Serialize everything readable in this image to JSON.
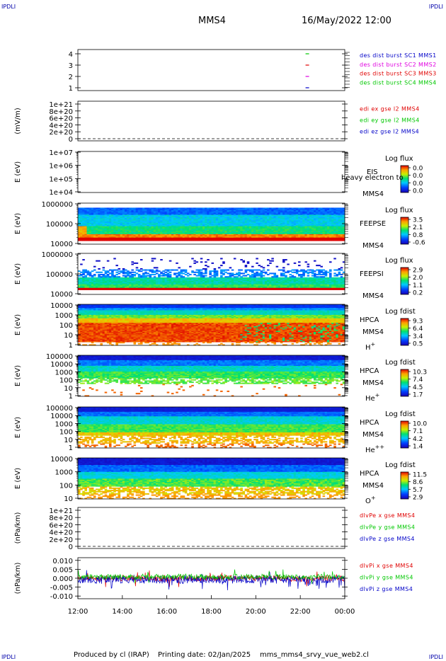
{
  "header": {
    "corner_tl": "IPDLI",
    "corner_tr": "IPDLI",
    "corner_bl": "IPDLI",
    "corner_br": "IPDLI",
    "spacecraft": "MMS4",
    "datetime": "16/May/2022 12:00"
  },
  "footer": {
    "producer": "Produced by cl (IRAP)",
    "printing": "Printing date: 02/Jan/2025",
    "file": "mms_mms4_srvy_vue_web2.cl"
  },
  "colors": {
    "mms1": "#0000c8",
    "mms2": "#e000e0",
    "mms3": "#e00000",
    "mms4": "#00c800",
    "red": "#e00000",
    "green": "#00c800",
    "blue": "#0000c8"
  },
  "chart_data": {
    "type": "heatmap",
    "time_axis": {
      "ticks": [
        "12:00",
        "14:00",
        "16:00",
        "18:00",
        "20:00",
        "22:00",
        "00:00"
      ],
      "range_hours": [
        12,
        24
      ]
    },
    "panels": [
      {
        "kind": "bursts",
        "ylabel": "",
        "yticks": [
          "4",
          "3",
          "2",
          "1"
        ],
        "legend": [
          {
            "text": "des dist burst SC1 MMS1",
            "color": "#0000c8"
          },
          {
            "text": "des dist burst SC2 MMS2",
            "color": "#e000e0"
          },
          {
            "text": "des dist burst SC3 MMS3",
            "color": "#e00000"
          },
          {
            "text": "des dist burst SC4 MMS4",
            "color": "#00c800"
          }
        ],
        "burst_marks": [
          {
            "sc": 4,
            "time_h": 22.3,
            "color": "#00c800"
          },
          {
            "sc": 3,
            "time_h": 22.3,
            "color": "#e00000"
          },
          {
            "sc": 2,
            "time_h": 22.3,
            "color": "#e000e0"
          },
          {
            "sc": 1,
            "time_h": 22.3,
            "color": "#0000c8"
          }
        ]
      },
      {
        "kind": "empty_line",
        "ylabel": "(mV/m)",
        "yticks": [
          "1e+21",
          "8e+20",
          "6e+20",
          "4e+20",
          "2e+20",
          "0"
        ],
        "legend": [
          {
            "text": "edi ex gse l2 MMS4",
            "color": "#e00000"
          },
          {
            "text": "edi ey gse l2 MMS4",
            "color": "#00c800"
          },
          {
            "text": "edi ez gse l2 MMS4",
            "color": "#0000c8"
          }
        ]
      },
      {
        "kind": "spectrogram",
        "ylabel": "E (eV)",
        "yticks": [
          "1e+07",
          "1e+06",
          "1e+05",
          "1e+04"
        ],
        "labels": [
          "EIS",
          "MMS4"
        ],
        "overlay": "heavy electron to",
        "cbar_title": "Log flux",
        "cbar_ticks": [
          "0.0",
          "0.0",
          "0.0",
          "0.0"
        ],
        "data_mode": "none"
      },
      {
        "kind": "spectrogram",
        "ylabel": "E (eV)",
        "yticks": [
          "1000000",
          "100000",
          "10000"
        ],
        "labels": [
          "FEEPSE",
          "MMS4"
        ],
        "cbar_title": "Log flux",
        "cbar_ticks": [
          "3.5",
          "2.1",
          "0.8",
          "-0.6"
        ],
        "data_mode": "feepse"
      },
      {
        "kind": "spectrogram",
        "ylabel": "E (eV)",
        "yticks": [
          "1000000",
          "100000",
          "10000"
        ],
        "labels": [
          "FEEPSI",
          "MMS4"
        ],
        "cbar_title": "Log flux",
        "cbar_ticks": [
          "2.9",
          "2.0",
          "1.1",
          "0.2"
        ],
        "data_mode": "feepsi"
      },
      {
        "kind": "spectrogram",
        "ylabel": "E (eV)",
        "yticks": [
          "10000",
          "1000",
          "100",
          "10",
          "1"
        ],
        "labels": [
          "HPCA",
          "MMS4"
        ],
        "species_base": "H",
        "species_sup": "+",
        "cbar_title": "Log fdist",
        "cbar_ticks": [
          "9.3",
          "6.4",
          "3.4",
          "0.5"
        ],
        "data_mode": "hplus"
      },
      {
        "kind": "spectrogram",
        "ylabel": "E (eV)",
        "yticks": [
          "100000",
          "10000",
          "1000",
          "100",
          "10",
          "1"
        ],
        "labels": [
          "HPCA",
          "MMS4"
        ],
        "species_base": "He",
        "species_sup": "+",
        "cbar_title": "Log fdist",
        "cbar_ticks": [
          "10.3",
          "7.4",
          "4.5",
          "1.7"
        ],
        "data_mode": "heplus"
      },
      {
        "kind": "spectrogram",
        "ylabel": "E (eV)",
        "yticks": [
          "100000",
          "10000",
          "1000",
          "100",
          "10",
          "1"
        ],
        "labels": [
          "HPCA",
          "MMS4"
        ],
        "species_base": "He",
        "species_sup": "++",
        "cbar_title": "Log fdist",
        "cbar_ticks": [
          "10.0",
          "7.1",
          "4.2",
          "1.4"
        ],
        "data_mode": "heplusplus"
      },
      {
        "kind": "spectrogram",
        "ylabel": "E (eV)",
        "yticks": [
          "10000",
          "1000",
          "100",
          "10"
        ],
        "labels": [
          "HPCA",
          "MMS4"
        ],
        "species_base": "O",
        "species_sup": "+",
        "cbar_title": "Log fdist",
        "cbar_ticks": [
          "11.5",
          "8.6",
          "5.7",
          "2.9"
        ],
        "data_mode": "oplus"
      },
      {
        "kind": "empty_line",
        "ylabel": "(nPa/km)",
        "yticks": [
          "1e+21",
          "8e+20",
          "6e+20",
          "4e+20",
          "2e+20",
          "0"
        ],
        "legend": [
          {
            "text": "dlvPe x gse MMS4",
            "color": "#e00000"
          },
          {
            "text": "dlvPe y gse MMS4",
            "color": "#00c800"
          },
          {
            "text": "dlvPe z gse MMS4",
            "color": "#0000c8"
          }
        ]
      },
      {
        "kind": "timeseries",
        "ylabel": "(nPa/km)",
        "yticks": [
          "0.010",
          "0.005",
          "0.000",
          "-0.005",
          "-0.010"
        ],
        "ylim": [
          -0.0115,
          0.0115
        ],
        "legend": [
          {
            "text": "dlvPi x gse MMS4",
            "color": "#e00000"
          },
          {
            "text": "dlvPi y gse MMS4",
            "color": "#00c800"
          },
          {
            "text": "dlvPi z gse MMS4",
            "color": "#0000c8"
          }
        ]
      }
    ]
  }
}
